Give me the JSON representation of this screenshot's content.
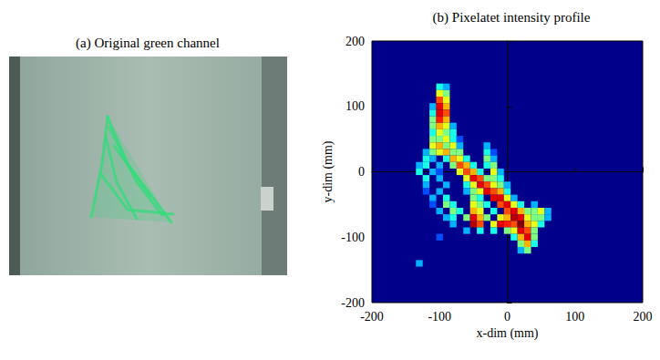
{
  "image_panel": {
    "title": "(a) Original green channel"
  },
  "chart_data": {
    "type": "heatmap",
    "title": "(b) Pixelatet intensity profile",
    "x_label": "x-dim (mm)",
    "y_label": "y-dim (mm)",
    "xlim": [
      -200,
      200
    ],
    "ylim": [
      -200,
      200
    ],
    "xticks": [
      -200,
      -100,
      0,
      100,
      200
    ],
    "yticks": [
      -200,
      -100,
      0,
      100,
      200
    ],
    "cell_size": 10,
    "color_range": [
      0,
      1
    ],
    "cells": [
      [
        -100,
        130,
        0.4
      ],
      [
        -90,
        130,
        0.3
      ],
      [
        -100,
        120,
        0.6
      ],
      [
        -90,
        120,
        0.5
      ],
      [
        -100,
        110,
        0.8
      ],
      [
        -90,
        110,
        0.6
      ],
      [
        -110,
        100,
        0.3
      ],
      [
        -100,
        100,
        0.9
      ],
      [
        -90,
        100,
        0.7
      ],
      [
        -110,
        90,
        0.4
      ],
      [
        -100,
        90,
        0.9
      ],
      [
        -90,
        90,
        0.8
      ],
      [
        -110,
        80,
        0.5
      ],
      [
        -100,
        80,
        0.85
      ],
      [
        -90,
        80,
        0.7
      ],
      [
        -110,
        70,
        0.5
      ],
      [
        -100,
        70,
        0.7
      ],
      [
        -90,
        70,
        0.6
      ],
      [
        -80,
        70,
        0.3
      ],
      [
        -110,
        60,
        0.4
      ],
      [
        -100,
        60,
        0.6
      ],
      [
        -90,
        60,
        0.5
      ],
      [
        -80,
        60,
        0.4
      ],
      [
        -110,
        50,
        0.5
      ],
      [
        -100,
        50,
        0.5
      ],
      [
        -90,
        50,
        0.6
      ],
      [
        -80,
        50,
        0.4
      ],
      [
        -70,
        50,
        0.2
      ],
      [
        -110,
        40,
        0.6
      ],
      [
        -100,
        40,
        0.7
      ],
      [
        -90,
        40,
        0.5
      ],
      [
        -80,
        40,
        0.6
      ],
      [
        -70,
        40,
        0.3
      ],
      [
        -30,
        40,
        0.3
      ],
      [
        -120,
        30,
        0.3
      ],
      [
        -110,
        30,
        0.5
      ],
      [
        -100,
        30,
        0.6
      ],
      [
        -90,
        30,
        0.7
      ],
      [
        -80,
        30,
        0.5
      ],
      [
        -70,
        30,
        0.5
      ],
      [
        -30,
        30,
        0.4
      ],
      [
        -20,
        30,
        0.2
      ],
      [
        -120,
        20,
        0.4
      ],
      [
        -110,
        20,
        0.3
      ],
      [
        -90,
        20,
        0.4
      ],
      [
        -80,
        20,
        0.7
      ],
      [
        -70,
        20,
        0.6
      ],
      [
        -60,
        20,
        0.4
      ],
      [
        -30,
        20,
        0.5
      ],
      [
        -20,
        20,
        0.3
      ],
      [
        -130,
        10,
        0.3
      ],
      [
        -120,
        10,
        0.4
      ],
      [
        -100,
        10,
        0.3
      ],
      [
        -80,
        10,
        0.5
      ],
      [
        -70,
        10,
        0.8
      ],
      [
        -60,
        10,
        0.7
      ],
      [
        -50,
        10,
        0.4
      ],
      [
        -30,
        10,
        0.4
      ],
      [
        -20,
        10,
        0.5
      ],
      [
        -130,
        0,
        0.4
      ],
      [
        -110,
        0,
        0.3
      ],
      [
        -100,
        0,
        0.2
      ],
      [
        -70,
        0,
        0.6
      ],
      [
        -60,
        0,
        0.8
      ],
      [
        -50,
        0,
        0.7
      ],
      [
        -40,
        0,
        0.4
      ],
      [
        -20,
        0,
        0.6
      ],
      [
        -10,
        0,
        0.3
      ],
      [
        -120,
        -10,
        0.4
      ],
      [
        -100,
        -10,
        0.3
      ],
      [
        -60,
        -10,
        0.6
      ],
      [
        -50,
        -10,
        0.9
      ],
      [
        -40,
        -10,
        0.8
      ],
      [
        -30,
        -10,
        0.5
      ],
      [
        -20,
        -10,
        0.5
      ],
      [
        -10,
        -10,
        0.4
      ],
      [
        -120,
        -20,
        0.3
      ],
      [
        -90,
        -20,
        0.3
      ],
      [
        -60,
        -20,
        0.4
      ],
      [
        -50,
        -20,
        0.6
      ],
      [
        -40,
        -20,
        0.9
      ],
      [
        -30,
        -20,
        0.8
      ],
      [
        -20,
        -20,
        0.6
      ],
      [
        -10,
        -20,
        0.5
      ],
      [
        0,
        -20,
        0.3
      ],
      [
        -120,
        -30,
        0.2
      ],
      [
        -100,
        -30,
        0.3
      ],
      [
        -60,
        -30,
        0.3
      ],
      [
        -50,
        -30,
        0.5
      ],
      [
        -40,
        -30,
        0.6
      ],
      [
        -30,
        -30,
        0.9
      ],
      [
        -20,
        -30,
        0.8
      ],
      [
        -10,
        -30,
        0.7
      ],
      [
        0,
        -30,
        0.4
      ],
      [
        -110,
        -40,
        0.3
      ],
      [
        -90,
        -40,
        0.4
      ],
      [
        -50,
        -40,
        0.5
      ],
      [
        -40,
        -40,
        0.4
      ],
      [
        -20,
        -40,
        0.9
      ],
      [
        -10,
        -40,
        0.9
      ],
      [
        0,
        -40,
        0.6
      ],
      [
        10,
        -40,
        0.3
      ],
      [
        -110,
        -50,
        0.2
      ],
      [
        -90,
        -50,
        0.5
      ],
      [
        -80,
        -50,
        0.4
      ],
      [
        -50,
        -50,
        0.6
      ],
      [
        -40,
        -50,
        0.5
      ],
      [
        -30,
        -50,
        0.4
      ],
      [
        -10,
        -50,
        0.8
      ],
      [
        0,
        -50,
        0.9
      ],
      [
        10,
        -50,
        0.6
      ],
      [
        20,
        -50,
        0.4
      ],
      [
        40,
        -50,
        0.3
      ],
      [
        -100,
        -60,
        0.3
      ],
      [
        -80,
        -60,
        0.5
      ],
      [
        -70,
        -60,
        0.4
      ],
      [
        -50,
        -60,
        0.7
      ],
      [
        -40,
        -60,
        0.6
      ],
      [
        -20,
        -60,
        0.4
      ],
      [
        0,
        -60,
        0.8
      ],
      [
        10,
        -60,
        0.9
      ],
      [
        20,
        -60,
        0.7
      ],
      [
        30,
        -60,
        0.5
      ],
      [
        40,
        -60,
        0.5
      ],
      [
        50,
        -60,
        0.6
      ],
      [
        60,
        -60,
        0.3
      ],
      [
        -90,
        -70,
        0.3
      ],
      [
        -80,
        -70,
        0.4
      ],
      [
        -60,
        -70,
        0.5
      ],
      [
        -50,
        -70,
        0.9
      ],
      [
        -40,
        -70,
        0.7
      ],
      [
        -30,
        -70,
        0.5
      ],
      [
        -10,
        -70,
        0.6
      ],
      [
        0,
        -70,
        0.7
      ],
      [
        10,
        -70,
        0.95
      ],
      [
        20,
        -70,
        0.9
      ],
      [
        30,
        -70,
        0.6
      ],
      [
        40,
        -70,
        0.5
      ],
      [
        50,
        -70,
        0.5
      ],
      [
        60,
        -70,
        0.3
      ],
      [
        -80,
        -80,
        0.3
      ],
      [
        -50,
        -80,
        0.95
      ],
      [
        -40,
        -80,
        0.8
      ],
      [
        -20,
        -80,
        0.6
      ],
      [
        -10,
        -80,
        0.9
      ],
      [
        0,
        -80,
        0.85
      ],
      [
        10,
        -80,
        0.8
      ],
      [
        20,
        -80,
        1.0
      ],
      [
        30,
        -80,
        0.7
      ],
      [
        40,
        -80,
        0.6
      ],
      [
        50,
        -80,
        0.4
      ],
      [
        -60,
        -90,
        0.3
      ],
      [
        -40,
        -90,
        0.4
      ],
      [
        -20,
        -90,
        0.4
      ],
      [
        0,
        -90,
        0.5
      ],
      [
        10,
        -90,
        0.6
      ],
      [
        20,
        -90,
        0.9
      ],
      [
        30,
        -90,
        0.8
      ],
      [
        40,
        -90,
        0.5
      ],
      [
        -100,
        -100,
        0.2
      ],
      [
        10,
        -100,
        0.4
      ],
      [
        20,
        -100,
        0.7
      ],
      [
        30,
        -100,
        0.9
      ],
      [
        40,
        -100,
        0.5
      ],
      [
        20,
        -110,
        0.5
      ],
      [
        30,
        -110,
        0.7
      ],
      [
        40,
        -110,
        0.4
      ],
      [
        20,
        -120,
        0.3
      ],
      [
        30,
        -120,
        0.5
      ],
      [
        -130,
        -140,
        0.3
      ]
    ]
  }
}
